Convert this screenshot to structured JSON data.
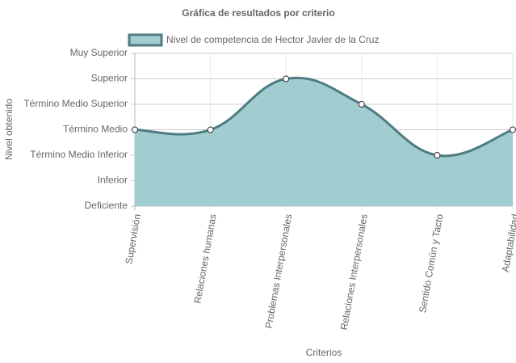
{
  "chart_data": {
    "type": "line",
    "title": "Gráfica de resultados por criterio",
    "x_label": "Criterios",
    "y_label": "Nivel obtenido",
    "categories": [
      "Supervisión",
      "Relaciones humanas",
      "Problemas Interpersonales",
      "Relaciones Interpersonales",
      "Sentido Común y Tacto",
      "Adaptabilidad"
    ],
    "series": [
      {
        "name": "Nivel de competencia de Hector Javier de la Cruz",
        "color": "#4d7c82",
        "fill_color": "#a2cdd0",
        "values": [
          3,
          3,
          5,
          4,
          2,
          3
        ]
      }
    ],
    "ylim": [
      0,
      6
    ],
    "yticks": [
      {
        "value": 0,
        "label": "Deficiente"
      },
      {
        "value": 1,
        "label": "Inferior"
      },
      {
        "value": 2,
        "label": "Término Medio Inferior"
      },
      {
        "value": 3,
        "label": "Término Medio"
      },
      {
        "value": 4,
        "label": "Término Medio Superior"
      },
      {
        "value": 5,
        "label": "Superior"
      },
      {
        "value": 6,
        "label": "Muy Superior"
      }
    ],
    "grid": true,
    "fill": true,
    "legend": "top"
  }
}
